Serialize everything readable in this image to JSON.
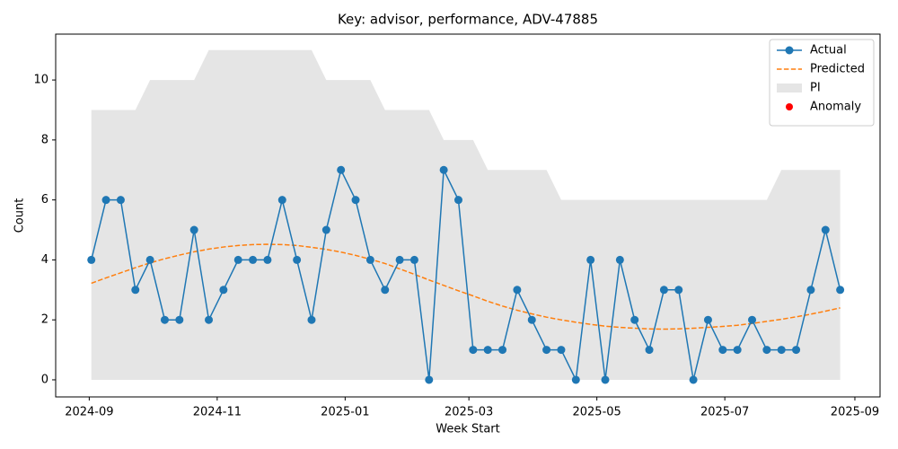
{
  "chart_data": {
    "type": "line",
    "title": "Key: advisor, performance, ADV-47885",
    "x_label": "Week Start",
    "y_label": "Count",
    "x": [
      "2024-09-02",
      "2024-09-09",
      "2024-09-16",
      "2024-09-23",
      "2024-09-30",
      "2024-10-07",
      "2024-10-14",
      "2024-10-21",
      "2024-10-28",
      "2024-11-04",
      "2024-11-11",
      "2024-11-18",
      "2024-11-25",
      "2024-12-02",
      "2024-12-09",
      "2024-12-16",
      "2024-12-23",
      "2024-12-30",
      "2025-01-06",
      "2025-01-13",
      "2025-01-20",
      "2025-01-27",
      "2025-02-03",
      "2025-02-10",
      "2025-02-17",
      "2025-02-24",
      "2025-03-03",
      "2025-03-10",
      "2025-03-17",
      "2025-03-24",
      "2025-03-31",
      "2025-04-07",
      "2025-04-14",
      "2025-04-21",
      "2025-04-28",
      "2025-05-05",
      "2025-05-12",
      "2025-05-19",
      "2025-05-26",
      "2025-06-02",
      "2025-06-09",
      "2025-06-16",
      "2025-06-23",
      "2025-06-30",
      "2025-07-07",
      "2025-07-14",
      "2025-07-21",
      "2025-07-28",
      "2025-08-04",
      "2025-08-11",
      "2025-08-18",
      "2025-08-25"
    ],
    "series": [
      {
        "name": "Actual",
        "color": "#1f77b4",
        "style": "line-marker",
        "values": [
          4,
          6,
          6,
          3,
          4,
          2,
          2,
          5,
          2,
          3,
          4,
          4,
          4,
          6,
          4,
          2,
          5,
          7,
          6,
          4,
          3,
          4,
          4,
          0,
          7,
          6,
          1,
          1,
          1,
          3,
          2,
          1,
          1,
          0,
          4,
          0,
          4,
          2,
          1,
          3,
          3,
          0,
          2,
          1,
          1,
          2,
          1,
          1,
          1,
          3,
          5,
          3
        ]
      },
      {
        "name": "Predicted",
        "color": "#ff7f0e",
        "style": "dashed",
        "values": [
          3.22,
          3.4,
          3.57,
          3.74,
          3.9,
          4.04,
          4.16,
          4.27,
          4.36,
          4.43,
          4.48,
          4.51,
          4.52,
          4.51,
          4.48,
          4.42,
          4.35,
          4.26,
          4.15,
          4.02,
          3.88,
          3.7,
          3.52,
          3.33,
          3.15,
          2.97,
          2.8,
          2.62,
          2.46,
          2.32,
          2.2,
          2.09,
          2.0,
          1.92,
          1.85,
          1.79,
          1.75,
          1.72,
          1.7,
          1.69,
          1.7,
          1.72,
          1.75,
          1.78,
          1.82,
          1.88,
          1.95,
          2.02,
          2.1,
          2.19,
          2.29,
          2.4
        ]
      },
      {
        "name": "PI",
        "color": "#e5e5e5",
        "style": "band",
        "lower": [
          0,
          0,
          0,
          0,
          0,
          0,
          0,
          0,
          0,
          0,
          0,
          0,
          0,
          0,
          0,
          0,
          0,
          0,
          0,
          0,
          0,
          0,
          0,
          0,
          0,
          0,
          0,
          0,
          0,
          0,
          0,
          0,
          0,
          0,
          0,
          0,
          0,
          0,
          0,
          0,
          0,
          0,
          0,
          0,
          0,
          0,
          0,
          0,
          0,
          0,
          0,
          0
        ],
        "upper": [
          9,
          9,
          9,
          9,
          10,
          10,
          10,
          10,
          11,
          11,
          11,
          11,
          11,
          11,
          11,
          11,
          10,
          10,
          10,
          10,
          9,
          9,
          9,
          9,
          8,
          8,
          8,
          7,
          7,
          7,
          7,
          7,
          6,
          6,
          6,
          6,
          6,
          6,
          6,
          6,
          6,
          6,
          6,
          6,
          6,
          6,
          6,
          7,
          7,
          7,
          7,
          7
        ]
      },
      {
        "name": "Anomaly",
        "color": "#ff0000",
        "style": "scatter",
        "values": [
          null,
          null,
          null,
          null,
          null,
          null,
          null,
          null,
          null,
          null,
          null,
          null,
          null,
          null,
          null,
          null,
          null,
          null,
          null,
          null,
          null,
          null,
          null,
          null,
          null,
          null,
          null,
          null,
          null,
          null,
          null,
          null,
          null,
          null,
          null,
          null,
          null,
          null,
          null,
          null,
          null,
          null,
          null,
          null,
          null,
          null,
          null,
          null,
          null,
          null,
          null,
          null
        ]
      }
    ],
    "xlim": [
      "2024-08-16",
      "2025-09-13"
    ],
    "xticks": [
      {
        "value": "2024-09-01",
        "label": "2024-09"
      },
      {
        "value": "2024-11-01",
        "label": "2024-11"
      },
      {
        "value": "2025-01-01",
        "label": "2025-01"
      },
      {
        "value": "2025-03-01",
        "label": "2025-03"
      },
      {
        "value": "2025-05-01",
        "label": "2025-05"
      },
      {
        "value": "2025-07-01",
        "label": "2025-07"
      },
      {
        "value": "2025-09-01",
        "label": "2025-09"
      }
    ],
    "ylim": [
      -0.57,
      11.53
    ],
    "yticks": [
      0,
      2,
      4,
      6,
      8,
      10
    ],
    "grid": false,
    "legend": "upper right"
  }
}
